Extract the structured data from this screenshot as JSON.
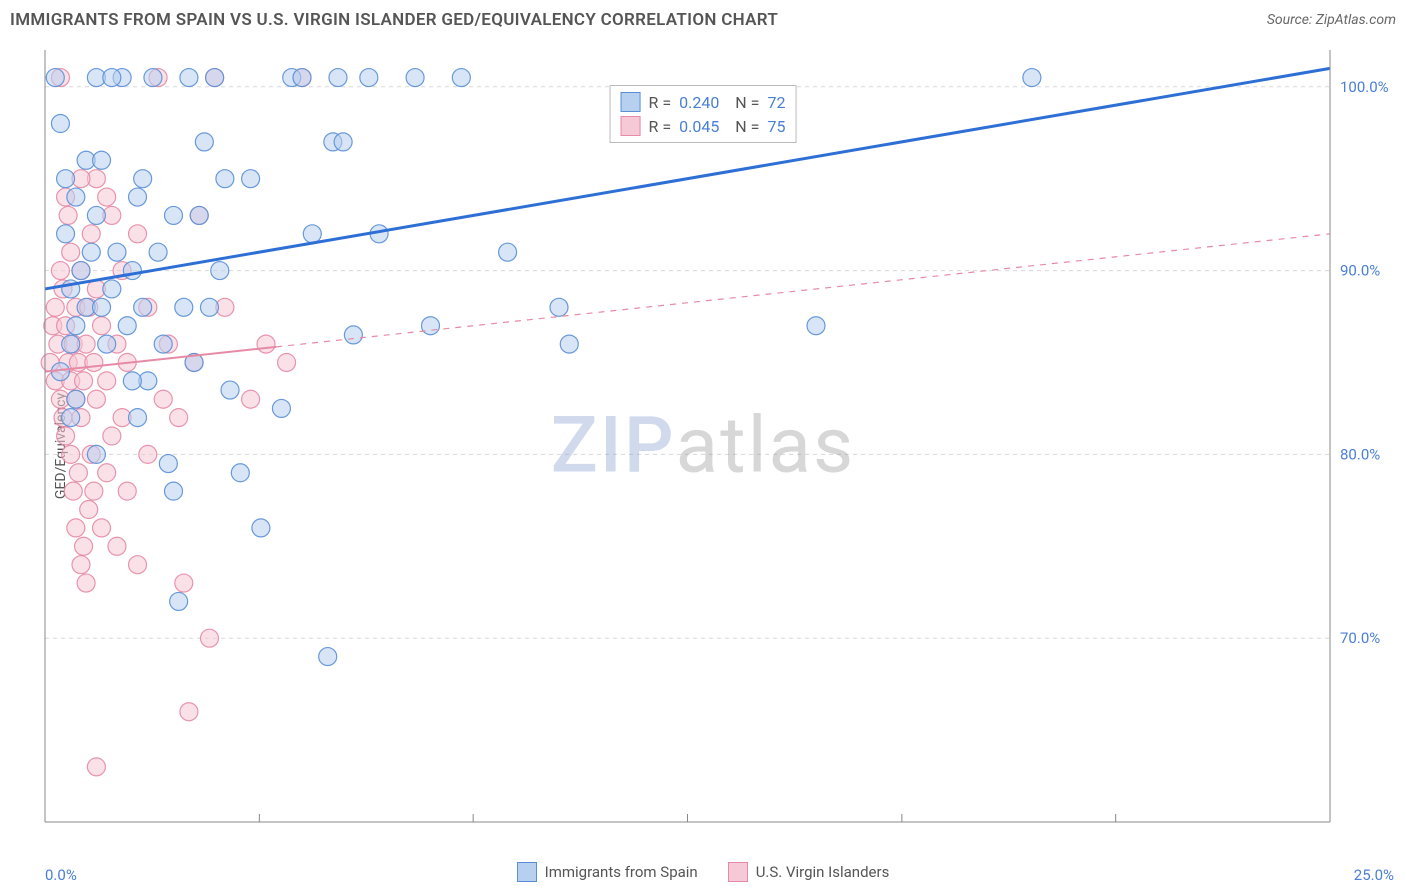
{
  "title": "IMMIGRANTS FROM SPAIN VS U.S. VIRGIN ISLANDER GED/EQUIVALENCY CORRELATION CHART",
  "source_label": "Source: ZipAtlas.com",
  "ylabel": "GED/Equivalency",
  "watermark": {
    "part1": "ZIP",
    "part2": "atlas"
  },
  "chart": {
    "type": "scatter",
    "background_color": "#ffffff",
    "grid_color": "#d8d8d8",
    "axis_color": "#888888",
    "xlim": [
      0,
      25
    ],
    "ylim": [
      60,
      102
    ],
    "x_ticks": [
      0,
      25
    ],
    "x_tick_labels": [
      "0.0%",
      "25.0%"
    ],
    "x_minor_ticks": [
      4.17,
      8.33,
      12.5,
      16.67,
      20.83
    ],
    "y_ticks": [
      70,
      80,
      90,
      100
    ],
    "y_tick_labels": [
      "70.0%",
      "80.0%",
      "90.0%",
      "100.0%"
    ],
    "y_tick_color": "#4a7fd6",
    "marker_radius": 9,
    "marker_opacity": 0.55,
    "marker_stroke_width": 1.2,
    "series": [
      {
        "name": "Immigrants from Spain",
        "color_fill": "#b8d0f0",
        "color_stroke": "#5a8fd6",
        "trend_color": "#2e6fd6",
        "trend_width": 3,
        "trend_dash": "none",
        "trend": {
          "x1": 0,
          "y1": 89.0,
          "x2": 25,
          "y2": 101.0
        },
        "stats": {
          "R": "0.240",
          "N": "72"
        },
        "points": [
          [
            0.2,
            100.5
          ],
          [
            0.5,
            89
          ],
          [
            0.6,
            87
          ],
          [
            0.4,
            92
          ],
          [
            0.3,
            84.5
          ],
          [
            0.5,
            86
          ],
          [
            0.7,
            90
          ],
          [
            0.6,
            83
          ],
          [
            0.8,
            88
          ],
          [
            0.9,
            91
          ],
          [
            1.0,
            100.5
          ],
          [
            1.1,
            88
          ],
          [
            1.2,
            86
          ],
          [
            1.0,
            93
          ],
          [
            1.3,
            89
          ],
          [
            1.5,
            100.5
          ],
          [
            1.4,
            91
          ],
          [
            1.6,
            87
          ],
          [
            1.7,
            90
          ],
          [
            1.8,
            94
          ],
          [
            1.9,
            88
          ],
          [
            2.0,
            84
          ],
          [
            2.1,
            100.5
          ],
          [
            2.2,
            91
          ],
          [
            2.3,
            86
          ],
          [
            2.4,
            79.5
          ],
          [
            2.5,
            78
          ],
          [
            2.6,
            72
          ],
          [
            2.8,
            100.5
          ],
          [
            3.0,
            93
          ],
          [
            3.1,
            97
          ],
          [
            3.3,
            100.5
          ],
          [
            3.4,
            90
          ],
          [
            3.6,
            83.5
          ],
          [
            3.8,
            79
          ],
          [
            4.0,
            95
          ],
          [
            4.2,
            76
          ],
          [
            4.6,
            82.5
          ],
          [
            4.8,
            100.5
          ],
          [
            5.0,
            100.5
          ],
          [
            5.2,
            92
          ],
          [
            5.6,
            97
          ],
          [
            5.8,
            97
          ],
          [
            5.7,
            100.5
          ],
          [
            5.5,
            69
          ],
          [
            6.0,
            86.5
          ],
          [
            6.3,
            100.5
          ],
          [
            6.5,
            92
          ],
          [
            7.2,
            100.5
          ],
          [
            7.5,
            87
          ],
          [
            8.1,
            100.5
          ],
          [
            9.0,
            91
          ],
          [
            10.0,
            88
          ],
          [
            10.2,
            86
          ],
          [
            15.0,
            87
          ],
          [
            19.2,
            100.5
          ],
          [
            0.4,
            95
          ],
          [
            0.3,
            98
          ],
          [
            0.8,
            96
          ],
          [
            0.6,
            94
          ],
          [
            1.1,
            96
          ],
          [
            1.3,
            100.5
          ],
          [
            1.7,
            84
          ],
          [
            1.8,
            82
          ],
          [
            1.9,
            95
          ],
          [
            2.5,
            93
          ],
          [
            2.7,
            88
          ],
          [
            2.9,
            85
          ],
          [
            3.2,
            88
          ],
          [
            3.5,
            95
          ],
          [
            1.0,
            80
          ],
          [
            0.5,
            82
          ]
        ]
      },
      {
        "name": "U.S. Virgin Islanders",
        "color_fill": "#f5c9d6",
        "color_stroke": "#e68aa5",
        "trend_color": "#e68aa5",
        "trend_width": 2,
        "trend_dash": "solid-then-dash",
        "trend": {
          "x1": 0,
          "y1": 84.5,
          "x2": 25,
          "y2": 92.0
        },
        "stats": {
          "R": "0.045",
          "N": "75"
        },
        "points": [
          [
            0.1,
            85
          ],
          [
            0.15,
            87
          ],
          [
            0.2,
            84
          ],
          [
            0.2,
            88
          ],
          [
            0.25,
            86
          ],
          [
            0.3,
            83
          ],
          [
            0.3,
            90
          ],
          [
            0.35,
            82
          ],
          [
            0.35,
            89
          ],
          [
            0.4,
            81
          ],
          [
            0.4,
            87
          ],
          [
            0.45,
            85
          ],
          [
            0.45,
            93
          ],
          [
            0.5,
            80
          ],
          [
            0.5,
            84
          ],
          [
            0.5,
            91
          ],
          [
            0.55,
            78
          ],
          [
            0.55,
            86
          ],
          [
            0.6,
            76
          ],
          [
            0.6,
            83
          ],
          [
            0.6,
            88
          ],
          [
            0.65,
            79
          ],
          [
            0.65,
            85
          ],
          [
            0.7,
            74
          ],
          [
            0.7,
            82
          ],
          [
            0.7,
            90
          ],
          [
            0.75,
            75
          ],
          [
            0.75,
            84
          ],
          [
            0.8,
            73
          ],
          [
            0.8,
            86
          ],
          [
            0.85,
            77
          ],
          [
            0.85,
            88
          ],
          [
            0.9,
            80
          ],
          [
            0.9,
            92
          ],
          [
            0.95,
            78
          ],
          [
            0.95,
            85
          ],
          [
            1.0,
            63
          ],
          [
            1.0,
            83
          ],
          [
            1.0,
            89
          ],
          [
            1.1,
            76
          ],
          [
            1.1,
            87
          ],
          [
            1.2,
            79
          ],
          [
            1.2,
            84
          ],
          [
            1.3,
            81
          ],
          [
            1.3,
            93
          ],
          [
            1.4,
            75
          ],
          [
            1.4,
            86
          ],
          [
            1.5,
            82
          ],
          [
            1.5,
            90
          ],
          [
            1.6,
            78
          ],
          [
            1.6,
            85
          ],
          [
            1.8,
            74
          ],
          [
            1.8,
            92
          ],
          [
            2.0,
            80
          ],
          [
            2.0,
            88
          ],
          [
            2.2,
            100.5
          ],
          [
            2.3,
            83
          ],
          [
            2.4,
            86
          ],
          [
            2.6,
            82
          ],
          [
            2.7,
            73
          ],
          [
            2.8,
            66
          ],
          [
            2.9,
            85
          ],
          [
            3.0,
            93
          ],
          [
            3.2,
            70
          ],
          [
            3.3,
            100.5
          ],
          [
            3.5,
            88
          ],
          [
            4.0,
            83
          ],
          [
            4.3,
            86
          ],
          [
            4.7,
            85
          ],
          [
            5.0,
            100.5
          ],
          [
            1.0,
            95
          ],
          [
            1.2,
            94
          ],
          [
            0.7,
            95
          ],
          [
            0.4,
            94
          ],
          [
            0.3,
            100.5
          ]
        ]
      }
    ]
  },
  "legend_bottom": [
    {
      "label": "Immigrants from Spain",
      "fill": "#b8d0f0",
      "stroke": "#5a8fd6"
    },
    {
      "label": "U.S. Virgin Islanders",
      "fill": "#f5c9d6",
      "stroke": "#e68aa5"
    }
  ]
}
